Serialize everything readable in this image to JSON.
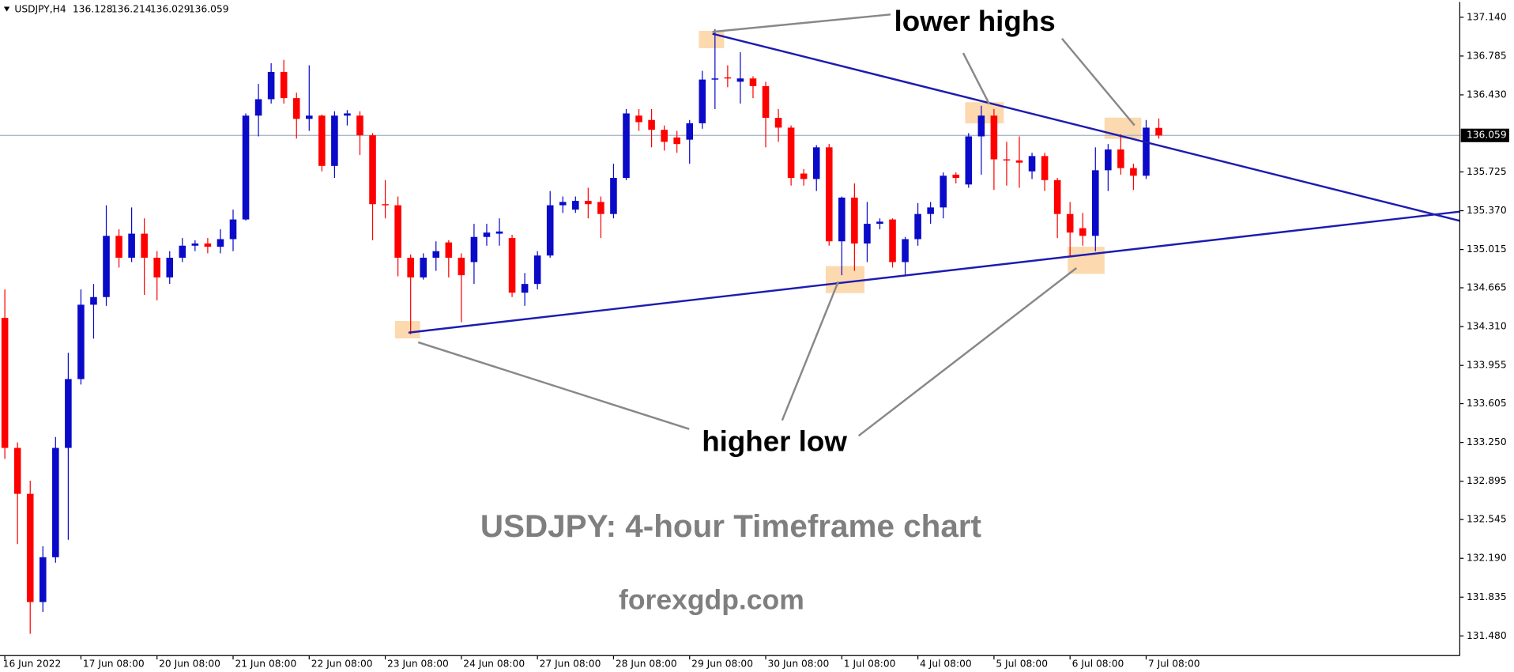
{
  "chart_data": {
    "type": "candlestick",
    "header": "USDJPY,H4",
    "title": "USDJPY: 4-hour Timeframe chart",
    "watermark": "forexgdp.com",
    "annotations": [
      "lower highs",
      "higher low"
    ],
    "up_color": "#0a0ac8",
    "down_color": "#ff0000",
    "grid": false,
    "categories": [
      "16 Jun 2022",
      null,
      null,
      null,
      null,
      null,
      "17 Jun 08:00",
      null,
      null,
      null,
      null,
      null,
      "20 Jun 08:00",
      null,
      null,
      null,
      null,
      null,
      "21 Jun 08:00",
      null,
      null,
      null,
      null,
      null,
      "22 Jun 08:00",
      null,
      null,
      null,
      null,
      null,
      "23 Jun 08:00",
      null,
      null,
      null,
      null,
      null,
      "24 Jun 08:00",
      null,
      null,
      null,
      null,
      null,
      "27 Jun 08:00",
      null,
      null,
      null,
      null,
      null,
      "28 Jun 08:00",
      null,
      null,
      null,
      null,
      null,
      "29 Jun 08:00",
      null,
      null,
      null,
      null,
      null,
      "30 Jun 08:00",
      null,
      null,
      null,
      null,
      null,
      "1 Jul 08:00",
      null,
      null,
      null,
      null,
      null,
      "4 Jul 08:00",
      null,
      null,
      null,
      null,
      null,
      "5 Jul 08:00",
      null,
      null,
      null,
      null,
      null,
      "6 Jul 08:00",
      null,
      null,
      null,
      null,
      null,
      "7 Jul 08:00",
      null
    ],
    "open": [
      134.39,
      133.2,
      132.78,
      131.79,
      132.2,
      133.2,
      133.83,
      134.51,
      134.58,
      135.14,
      134.94,
      135.16,
      134.94,
      134.76,
      134.94,
      135.05,
      135.07,
      135.04,
      135.11,
      135.29,
      136.24,
      136.39,
      136.64,
      136.4,
      136.21,
      136.24,
      135.78,
      136.24,
      136.24,
      136.06,
      135.43,
      135.42,
      134.94,
      134.76,
      134.94,
      135.08,
      134.94,
      134.9,
      135.13,
      135.16,
      135.12,
      134.62,
      134.7,
      134.96,
      135.42,
      135.38,
      135.46,
      135.45,
      135.34,
      135.67,
      136.24,
      136.2,
      136.11,
      136.04,
      136.02,
      136.17,
      136.57,
      136.59,
      136.55,
      136.58,
      136.51,
      136.22,
      136.13,
      135.71,
      135.66,
      135.95,
      135.09,
      135.49,
      135.07,
      135.25,
      135.29,
      134.9,
      135.11,
      135.34,
      135.4,
      135.7,
      135.61,
      136.05,
      136.24,
      135.84,
      135.83,
      135.73,
      135.87,
      135.65,
      135.34,
      135.21,
      135.14,
      135.74,
      135.93,
      135.76,
      135.69,
      136.128
    ],
    "high": [
      134.65,
      133.25,
      132.9,
      132.3,
      133.3,
      134.07,
      134.65,
      134.7,
      135.42,
      135.2,
      135.4,
      135.3,
      135.0,
      135.0,
      135.12,
      135.1,
      135.12,
      135.2,
      135.38,
      136.26,
      136.53,
      136.72,
      136.75,
      136.45,
      136.7,
      136.25,
      136.28,
      136.29,
      136.28,
      136.08,
      135.65,
      135.5,
      134.97,
      134.98,
      135.09,
      135.1,
      134.98,
      135.25,
      135.25,
      135.3,
      135.15,
      134.8,
      135.0,
      135.55,
      135.5,
      135.5,
      135.58,
      135.5,
      135.8,
      136.3,
      136.3,
      136.3,
      136.15,
      136.1,
      136.2,
      136.65,
      137.03,
      136.7,
      136.82,
      136.6,
      136.55,
      136.3,
      136.15,
      135.75,
      135.97,
      135.98,
      135.5,
      135.62,
      135.45,
      135.3,
      135.3,
      135.13,
      135.44,
      135.45,
      135.72,
      135.72,
      136.08,
      136.33,
      136.3,
      136.0,
      136.05,
      135.9,
      135.9,
      135.67,
      135.45,
      135.35,
      135.95,
      135.98,
      136.07,
      135.8,
      136.2,
      136.214
    ],
    "low": [
      133.1,
      132.32,
      131.5,
      131.7,
      132.15,
      132.36,
      133.78,
      134.2,
      134.5,
      134.85,
      134.9,
      134.6,
      134.55,
      134.7,
      134.9,
      135.0,
      134.98,
      134.98,
      135.0,
      135.28,
      136.05,
      136.35,
      136.35,
      136.03,
      136.1,
      135.73,
      135.67,
      136.15,
      135.88,
      135.1,
      135.3,
      134.77,
      134.24,
      134.74,
      134.82,
      134.76,
      134.35,
      134.7,
      135.05,
      135.05,
      134.58,
      134.5,
      134.65,
      134.94,
      135.35,
      135.35,
      135.3,
      135.12,
      135.3,
      135.65,
      136.1,
      135.95,
      135.92,
      135.9,
      135.8,
      136.12,
      136.3,
      136.5,
      136.35,
      136.4,
      135.95,
      136.0,
      135.6,
      135.6,
      135.55,
      135.05,
      134.78,
      134.82,
      134.9,
      135.2,
      134.85,
      134.78,
      135.05,
      135.25,
      135.3,
      135.62,
      135.58,
      135.7,
      135.56,
      135.6,
      135.58,
      135.66,
      135.55,
      135.12,
      134.95,
      135.05,
      135.0,
      135.55,
      135.7,
      135.56,
      135.66,
      136.029
    ],
    "close": [
      133.2,
      132.78,
      131.79,
      132.2,
      133.2,
      133.83,
      134.51,
      134.58,
      135.14,
      134.94,
      135.16,
      134.94,
      134.76,
      134.94,
      135.05,
      135.07,
      135.04,
      135.11,
      135.29,
      136.24,
      136.39,
      136.64,
      136.4,
      136.21,
      136.24,
      135.78,
      136.24,
      136.26,
      136.06,
      135.43,
      135.42,
      134.94,
      134.76,
      134.94,
      135.0,
      134.94,
      134.78,
      135.13,
      135.17,
      135.18,
      134.62,
      134.7,
      134.96,
      135.42,
      135.45,
      135.46,
      135.43,
      135.34,
      135.67,
      136.26,
      136.18,
      136.11,
      136.0,
      135.98,
      136.17,
      136.57,
      136.58,
      136.58,
      136.58,
      136.51,
      136.22,
      136.13,
      135.67,
      135.66,
      135.95,
      135.09,
      135.49,
      135.07,
      135.25,
      135.27,
      134.9,
      135.11,
      135.34,
      135.4,
      135.69,
      135.67,
      136.05,
      136.24,
      135.84,
      135.83,
      135.81,
      135.87,
      135.65,
      135.34,
      135.17,
      135.14,
      135.74,
      135.93,
      135.76,
      135.69,
      136.13,
      136.059
    ],
    "ylim": [
      131.3,
      137.28
    ],
    "yticks": [
      {
        "value": 137.14,
        "label": "137.140"
      },
      136.785,
      {
        "value": 136.43,
        "label": "136.430"
      },
      135.725,
      {
        "value": 135.37,
        "label": "135.370"
      },
      135.015,
      134.665,
      {
        "value": 134.31,
        "label": "134.310"
      },
      133.955,
      133.605,
      {
        "value": 133.25,
        "label": "133.250"
      },
      132.895,
      132.545,
      {
        "value": 132.19,
        "label": "132.190"
      },
      131.835,
      {
        "value": 131.48,
        "label": "131.480"
      }
    ],
    "current_price": 136.059
  }
}
